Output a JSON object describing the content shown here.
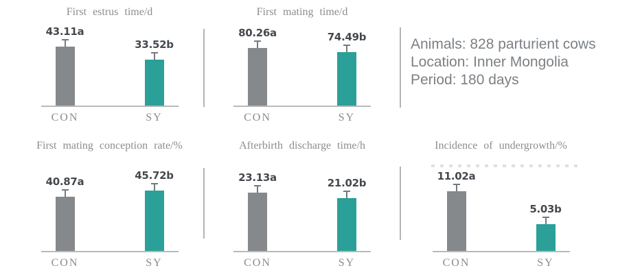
{
  "chart_data": [
    {
      "type": "bar",
      "title": "First estrus time/d",
      "categories": [
        "CON",
        "SY"
      ],
      "values": [
        43.11,
        33.52
      ],
      "value_labels": [
        "43.11a",
        "33.52b"
      ],
      "ylim": [
        0,
        55
      ],
      "colors": [
        "#85898c",
        "#2aa098"
      ],
      "error_bars": true,
      "grid": false,
      "legend": false
    },
    {
      "type": "bar",
      "title": "First mating time/d",
      "categories": [
        "CON",
        "SY"
      ],
      "values": [
        80.26,
        74.49
      ],
      "value_labels": [
        "80.26a",
        "74.49b"
      ],
      "ylim": [
        0,
        105
      ],
      "colors": [
        "#85898c",
        "#2aa098"
      ],
      "error_bars": true,
      "grid": false,
      "legend": false
    },
    {
      "type": "bar",
      "title": "First mating conception rate/%",
      "categories": [
        "CON",
        "SY"
      ],
      "values": [
        40.87,
        45.72
      ],
      "value_labels": [
        "40.87a",
        "45.72b"
      ],
      "ylim": [
        0,
        57
      ],
      "colors": [
        "#85898c",
        "#2aa098"
      ],
      "error_bars": true,
      "grid": false,
      "legend": false
    },
    {
      "type": "bar",
      "title": "Afterbirth discharge time/h",
      "categories": [
        "CON",
        "SY"
      ],
      "values": [
        23.13,
        21.02
      ],
      "value_labels": [
        "23.13a",
        "21.02b"
      ],
      "ylim": [
        0,
        30
      ],
      "colors": [
        "#85898c",
        "#2aa098"
      ],
      "error_bars": true,
      "grid": false,
      "legend": false
    },
    {
      "type": "bar",
      "title": "Incidence of undergrowth/%",
      "categories": [
        "CON",
        "SY"
      ],
      "values": [
        11.02,
        5.03
      ],
      "value_labels": [
        "11.02a",
        "5.03b"
      ],
      "ylim": [
        0,
        14
      ],
      "colors": [
        "#85898c",
        "#2aa098"
      ],
      "error_bars": true,
      "grid": false,
      "legend": false
    }
  ],
  "info_panel": {
    "lines": [
      "Animals: 828 parturient cows",
      "Location: Inner Mongolia",
      "Period: 180 days"
    ]
  },
  "colors": {
    "bar_con": "#85898c",
    "bar_sy": "#2aa098",
    "axis_line": "#b7b9bb",
    "title_text": "#8a8d90",
    "value_text": "#45494e",
    "info_text": "#7c8084"
  }
}
